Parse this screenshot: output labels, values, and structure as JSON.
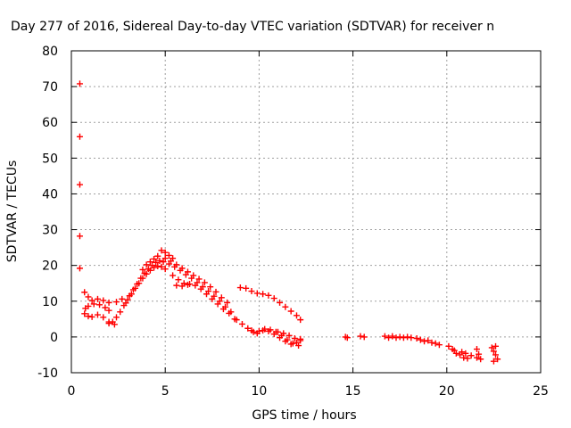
{
  "chart_data": {
    "type": "scatter",
    "title": "Day 277 of 2016, Sidereal Day-to-day VTEC variation (SDTVAR) for receiver n",
    "xlabel": "GPS time / hours",
    "ylabel": "SDTVAR / TECUs",
    "xlim": [
      0,
      25
    ],
    "ylim": [
      -10,
      80
    ],
    "xticks": [
      "0",
      "5",
      "10",
      "15",
      "20",
      "25"
    ],
    "yticks": [
      "-10",
      "0",
      "10",
      "20",
      "30",
      "40",
      "50",
      "60",
      "70",
      "80"
    ],
    "grid": true,
    "marker": "+",
    "color": "#ff0000",
    "series": [
      {
        "name": "",
        "points": [
          [
            0.45,
            70.8
          ],
          [
            0.45,
            56.0
          ],
          [
            0.45,
            42.6
          ],
          [
            0.45,
            28.2
          ],
          [
            0.45,
            19.2
          ],
          [
            0.7,
            12.5
          ],
          [
            0.9,
            11.2
          ],
          [
            1.1,
            10.2
          ],
          [
            1.4,
            10.6
          ],
          [
            1.7,
            10.2
          ],
          [
            2.0,
            9.6
          ],
          [
            2.4,
            9.8
          ],
          [
            2.7,
            10.6
          ],
          [
            0.75,
            8.0
          ],
          [
            0.9,
            8.6
          ],
          [
            1.2,
            9.2
          ],
          [
            1.5,
            9.0
          ],
          [
            1.8,
            8.2
          ],
          [
            2.0,
            7.4
          ],
          [
            0.7,
            6.5
          ],
          [
            0.9,
            5.8
          ],
          [
            1.1,
            5.6
          ],
          [
            1.4,
            6.2
          ],
          [
            1.7,
            5.5
          ],
          [
            2.0,
            4.2
          ],
          [
            2.3,
            3.5
          ],
          [
            2.0,
            3.8
          ],
          [
            2.2,
            4.2
          ],
          [
            2.4,
            5.5
          ],
          [
            2.6,
            7.0
          ],
          [
            2.8,
            8.8
          ],
          [
            3.0,
            10.4
          ],
          [
            3.2,
            12.0
          ],
          [
            3.4,
            13.6
          ],
          [
            3.6,
            15.0
          ],
          [
            3.8,
            16.4
          ],
          [
            4.0,
            17.6
          ],
          [
            4.2,
            18.6
          ],
          [
            4.4,
            19.4
          ],
          [
            4.6,
            19.8
          ],
          [
            4.8,
            19.6
          ],
          [
            5.0,
            19.0
          ],
          [
            2.9,
            9.5
          ],
          [
            3.1,
            11.5
          ],
          [
            3.3,
            13.2
          ],
          [
            3.5,
            14.8
          ],
          [
            3.7,
            16.4
          ],
          [
            3.9,
            17.8
          ],
          [
            4.1,
            19.0
          ],
          [
            4.3,
            20.0
          ],
          [
            4.5,
            20.8
          ],
          [
            4.7,
            21.3
          ],
          [
            4.9,
            21.0
          ],
          [
            3.8,
            18.8
          ],
          [
            4.0,
            20.2
          ],
          [
            4.2,
            21.0
          ],
          [
            4.4,
            21.8
          ],
          [
            4.6,
            22.6
          ],
          [
            4.8,
            24.2
          ],
          [
            5.0,
            23.6
          ],
          [
            5.2,
            22.8
          ],
          [
            5.4,
            22.0
          ],
          [
            5.0,
            22.0
          ],
          [
            5.3,
            21.2
          ],
          [
            5.6,
            20.2
          ],
          [
            5.9,
            19.2
          ],
          [
            6.2,
            18.2
          ],
          [
            6.5,
            17.2
          ],
          [
            6.8,
            16.2
          ],
          [
            7.1,
            15.2
          ],
          [
            7.4,
            14.0
          ],
          [
            7.7,
            12.6
          ],
          [
            8.0,
            11.0
          ],
          [
            8.3,
            9.6
          ],
          [
            5.2,
            20.4
          ],
          [
            5.5,
            19.6
          ],
          [
            5.8,
            18.6
          ],
          [
            6.1,
            17.4
          ],
          [
            6.4,
            16.4
          ],
          [
            6.7,
            15.2
          ],
          [
            7.0,
            14.0
          ],
          [
            7.3,
            12.8
          ],
          [
            7.6,
            11.4
          ],
          [
            7.9,
            10.0
          ],
          [
            8.2,
            8.4
          ],
          [
            8.5,
            7.0
          ],
          [
            5.4,
            17.2
          ],
          [
            5.7,
            16.0
          ],
          [
            6.0,
            15.0
          ],
          [
            6.3,
            14.8
          ],
          [
            6.6,
            14.4
          ],
          [
            6.9,
            13.4
          ],
          [
            7.2,
            12.0
          ],
          [
            7.5,
            10.6
          ],
          [
            7.8,
            9.2
          ],
          [
            8.1,
            7.8
          ],
          [
            8.4,
            6.6
          ],
          [
            8.7,
            5.0
          ],
          [
            5.6,
            14.4
          ],
          [
            5.9,
            14.2
          ],
          [
            6.2,
            14.6
          ],
          [
            8.8,
            4.8
          ],
          [
            9.1,
            3.6
          ],
          [
            9.4,
            2.4
          ],
          [
            9.7,
            1.4
          ],
          [
            10.0,
            1.6
          ],
          [
            10.3,
            2.2
          ],
          [
            10.6,
            2.0
          ],
          [
            10.9,
            1.4
          ],
          [
            11.2,
            0.4
          ],
          [
            11.5,
            -0.8
          ],
          [
            11.8,
            -1.8
          ],
          [
            12.1,
            -2.4
          ],
          [
            9.6,
            1.8
          ],
          [
            9.9,
            1.0
          ],
          [
            10.2,
            1.8
          ],
          [
            10.5,
            1.6
          ],
          [
            10.8,
            0.8
          ],
          [
            11.1,
            -0.2
          ],
          [
            11.4,
            -1.2
          ],
          [
            11.7,
            -2.0
          ],
          [
            12.0,
            -1.6
          ],
          [
            12.2,
            -0.6
          ],
          [
            11.0,
            1.4
          ],
          [
            11.3,
            1.0
          ],
          [
            11.6,
            0.4
          ],
          [
            11.9,
            -0.4
          ],
          [
            12.2,
            -1.0
          ],
          [
            9.0,
            13.8
          ],
          [
            9.3,
            13.6
          ],
          [
            9.6,
            12.8
          ],
          [
            9.9,
            12.2
          ],
          [
            10.2,
            12.0
          ],
          [
            10.5,
            11.6
          ],
          [
            10.8,
            10.8
          ],
          [
            11.1,
            9.6
          ],
          [
            11.4,
            8.4
          ],
          [
            11.7,
            7.2
          ],
          [
            12.0,
            6.0
          ],
          [
            12.2,
            4.8
          ],
          [
            14.6,
            0.0
          ],
          [
            14.7,
            -0.2
          ],
          [
            15.4,
            0.2
          ],
          [
            15.6,
            0.0
          ],
          [
            16.7,
            0.2
          ],
          [
            16.9,
            -0.2
          ],
          [
            17.1,
            0.2
          ],
          [
            17.3,
            -0.2
          ],
          [
            17.5,
            0.0
          ],
          [
            17.7,
            -0.2
          ],
          [
            17.9,
            0.0
          ],
          [
            18.1,
            -0.2
          ],
          [
            18.4,
            -0.4
          ],
          [
            18.6,
            -0.8
          ],
          [
            18.8,
            -1.2
          ],
          [
            19.0,
            -1.0
          ],
          [
            19.2,
            -1.6
          ],
          [
            19.4,
            -1.8
          ],
          [
            19.6,
            -2.2
          ],
          [
            20.1,
            -2.6
          ],
          [
            20.3,
            -3.4
          ],
          [
            20.5,
            -4.6
          ],
          [
            20.7,
            -5.0
          ],
          [
            20.9,
            -5.8
          ],
          [
            21.1,
            -6.0
          ],
          [
            21.3,
            -5.2
          ],
          [
            20.4,
            -3.8
          ],
          [
            20.8,
            -4.2
          ],
          [
            21.0,
            -4.6
          ],
          [
            21.6,
            -3.4
          ],
          [
            21.7,
            -4.8
          ],
          [
            21.8,
            -6.2
          ],
          [
            21.6,
            -5.8
          ],
          [
            22.4,
            -3.0
          ],
          [
            22.5,
            -4.0
          ],
          [
            22.6,
            -5.0
          ],
          [
            22.7,
            -6.2
          ],
          [
            22.5,
            -6.8
          ],
          [
            22.6,
            -2.6
          ]
        ]
      }
    ]
  }
}
